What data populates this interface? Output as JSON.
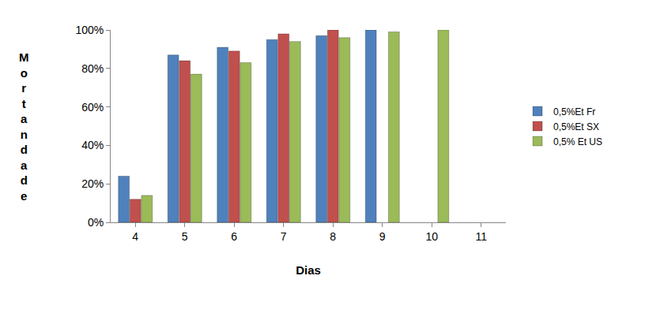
{
  "chart_data": {
    "type": "bar",
    "x_label": "Dias",
    "y_label": "Mortandade",
    "categories": [
      "4",
      "5",
      "6",
      "7",
      "8",
      "9",
      "10",
      "11"
    ],
    "series": [
      {
        "name": "0,5%Et Fr",
        "color": "#4f81bd",
        "values": [
          24,
          87,
          91,
          95,
          97,
          100,
          null,
          null
        ]
      },
      {
        "name": "0,5%Et SX",
        "color": "#c0504d",
        "values": [
          12,
          84,
          89,
          98,
          100,
          null,
          null,
          null
        ]
      },
      {
        "name": "0,5% Et US",
        "color": "#9bbb59",
        "values": [
          14,
          77,
          83,
          94,
          96,
          99,
          100,
          null
        ]
      }
    ],
    "ylim": [
      0,
      100
    ],
    "yticks": [
      {
        "value": 0,
        "label": "0%"
      },
      {
        "value": 20,
        "label": "20%"
      },
      {
        "value": 40,
        "label": "40%"
      },
      {
        "value": 60,
        "label": "60%"
      },
      {
        "value": 80,
        "label": "80%"
      },
      {
        "value": 100,
        "label": "100%"
      }
    ],
    "grid": false,
    "legend": "right"
  }
}
